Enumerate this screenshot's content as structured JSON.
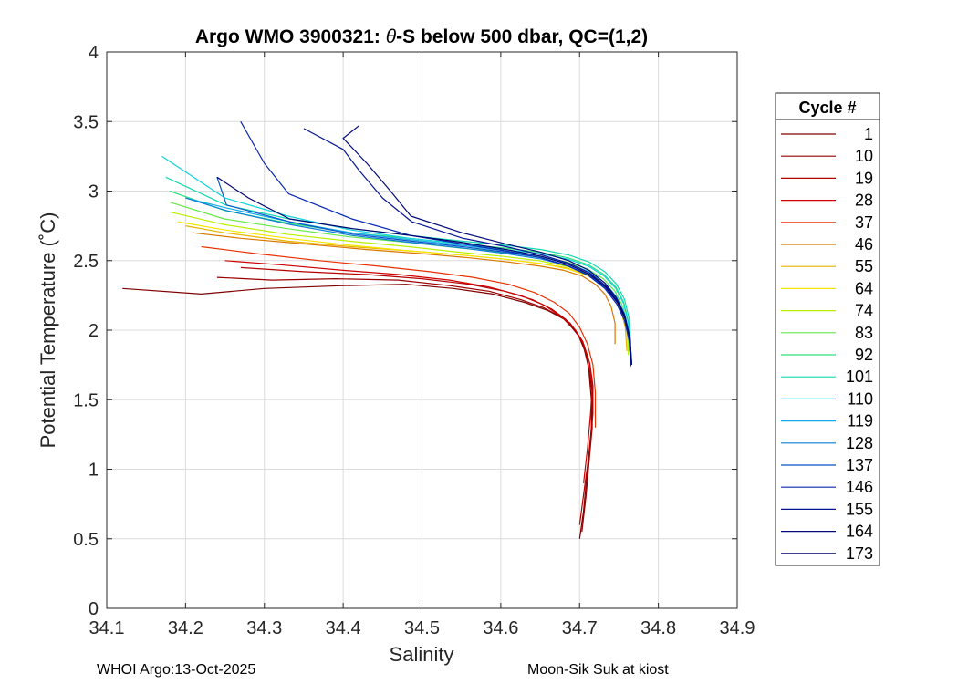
{
  "chart_data": {
    "type": "line",
    "title_prefix": "Argo WMO 3900321: ",
    "title_symbol": "θ",
    "title_suffix": "-S below 500 dbar,  QC=(1,2)",
    "xlabel": "Salinity",
    "ylabel": "Potential Temperature (˚C)",
    "xlim": [
      34.1,
      34.9
    ],
    "ylim": [
      0,
      4
    ],
    "xticks": [
      34.1,
      34.2,
      34.3,
      34.4,
      34.5,
      34.6,
      34.7,
      34.8,
      34.9
    ],
    "xtick_labels": [
      "34.1",
      "34.2",
      "34.3",
      "34.4",
      "34.5",
      "34.6",
      "34.7",
      "34.8",
      "34.9"
    ],
    "yticks": [
      0,
      0.5,
      1,
      1.5,
      2,
      2.5,
      3,
      3.5,
      4
    ],
    "ytick_labels": [
      "0",
      "0.5",
      "1",
      "1.5",
      "2",
      "2.5",
      "3",
      "3.5",
      "4"
    ],
    "grid": true,
    "legend_title": "Cycle #",
    "legend_position": "right",
    "series": [
      {
        "name": "1",
        "color": "#800000",
        "s": [
          34.7,
          34.705,
          34.71,
          34.715,
          34.715,
          34.712,
          34.708,
          34.7,
          34.69,
          34.68,
          34.66,
          34.63,
          34.59,
          34.54,
          34.48,
          34.4,
          34.3,
          34.22,
          34.12
        ],
        "t": [
          0.5,
          0.7,
          1.0,
          1.3,
          1.5,
          1.7,
          1.85,
          1.95,
          2.02,
          2.08,
          2.14,
          2.2,
          2.26,
          2.3,
          2.33,
          2.32,
          2.3,
          2.26,
          2.3
        ]
      },
      {
        "name": "10",
        "color": "#9a0000",
        "s": [
          34.703,
          34.708,
          34.712,
          34.716,
          34.716,
          34.712,
          34.706,
          34.698,
          34.688,
          34.675,
          34.655,
          34.625,
          34.585,
          34.535,
          34.47,
          34.39,
          34.31,
          34.24
        ],
        "t": [
          0.55,
          0.8,
          1.05,
          1.3,
          1.55,
          1.72,
          1.86,
          1.97,
          2.05,
          2.1,
          2.16,
          2.22,
          2.28,
          2.32,
          2.36,
          2.37,
          2.36,
          2.38
        ]
      },
      {
        "name": "19",
        "color": "#b50000",
        "s": [
          34.7,
          34.707,
          34.713,
          34.717,
          34.717,
          34.713,
          34.705,
          34.695,
          34.682,
          34.665,
          34.64,
          34.605,
          34.56,
          34.5,
          34.43,
          34.35,
          34.27
        ],
        "t": [
          0.6,
          0.9,
          1.15,
          1.4,
          1.6,
          1.76,
          1.9,
          2.0,
          2.08,
          2.15,
          2.22,
          2.28,
          2.33,
          2.37,
          2.4,
          2.42,
          2.45
        ]
      },
      {
        "name": "28",
        "color": "#cf0000",
        "s": [
          34.705,
          34.71,
          34.714,
          34.716,
          34.712,
          34.704,
          34.692,
          34.676,
          34.655,
          34.625,
          34.585,
          34.535,
          34.47,
          34.4,
          34.32,
          34.25
        ],
        "t": [
          0.9,
          1.15,
          1.4,
          1.6,
          1.78,
          1.92,
          2.02,
          2.1,
          2.18,
          2.25,
          2.31,
          2.36,
          2.4,
          2.43,
          2.47,
          2.5
        ]
      },
      {
        "name": "37",
        "color": "#e93000",
        "s": [
          34.72,
          34.72,
          34.717,
          34.71,
          34.7,
          34.687,
          34.668,
          34.643,
          34.61,
          34.565,
          34.51,
          34.445,
          34.37,
          34.29,
          34.22
        ],
        "t": [
          1.3,
          1.55,
          1.75,
          1.9,
          2.02,
          2.12,
          2.2,
          2.27,
          2.33,
          2.38,
          2.42,
          2.46,
          2.5,
          2.55,
          2.6
        ]
      },
      {
        "name": "46",
        "color": "#d87800",
        "s": [
          34.745,
          34.745,
          34.74,
          34.732,
          34.72,
          34.703,
          34.68,
          34.65,
          34.61,
          34.56,
          34.5,
          34.43,
          34.35,
          34.27,
          34.21
        ],
        "t": [
          1.9,
          2.05,
          2.17,
          2.26,
          2.33,
          2.39,
          2.43,
          2.46,
          2.49,
          2.52,
          2.55,
          2.58,
          2.62,
          2.66,
          2.7
        ]
      },
      {
        "name": "55",
        "color": "#e8b400",
        "s": [
          34.76,
          34.758,
          34.752,
          34.742,
          34.728,
          34.708,
          34.682,
          34.648,
          34.605,
          34.55,
          34.485,
          34.41,
          34.33,
          34.25,
          34.2
        ],
        "t": [
          1.85,
          2.02,
          2.15,
          2.25,
          2.33,
          2.4,
          2.45,
          2.48,
          2.51,
          2.54,
          2.57,
          2.6,
          2.64,
          2.7,
          2.75
        ]
      },
      {
        "name": "64",
        "color": "#f5e600",
        "s": [
          34.765,
          34.762,
          34.756,
          34.746,
          34.731,
          34.711,
          34.685,
          34.65,
          34.605,
          34.55,
          34.485,
          34.41,
          34.33,
          34.25,
          34.19
        ],
        "t": [
          1.8,
          1.98,
          2.12,
          2.23,
          2.32,
          2.39,
          2.44,
          2.48,
          2.51,
          2.54,
          2.57,
          2.61,
          2.66,
          2.72,
          2.78
        ]
      },
      {
        "name": "74",
        "color": "#b8f000",
        "s": [
          34.762,
          34.76,
          34.754,
          34.744,
          34.729,
          34.709,
          34.683,
          34.648,
          34.603,
          34.548,
          34.483,
          34.408,
          34.328,
          34.248,
          34.18
        ],
        "t": [
          1.82,
          2.0,
          2.14,
          2.25,
          2.34,
          2.41,
          2.46,
          2.5,
          2.53,
          2.56,
          2.6,
          2.64,
          2.69,
          2.76,
          2.85
        ]
      },
      {
        "name": "83",
        "color": "#66e84a",
        "s": [
          34.763,
          34.761,
          34.755,
          34.745,
          34.73,
          34.71,
          34.684,
          34.649,
          34.604,
          34.549,
          34.484,
          34.409,
          34.329,
          34.249,
          34.18
        ],
        "t": [
          1.85,
          2.03,
          2.17,
          2.28,
          2.37,
          2.44,
          2.49,
          2.53,
          2.56,
          2.59,
          2.63,
          2.67,
          2.73,
          2.8,
          2.92
        ]
      },
      {
        "name": "92",
        "color": "#2ee27a",
        "s": [
          34.764,
          34.762,
          34.756,
          34.746,
          34.731,
          34.711,
          34.685,
          34.65,
          34.605,
          34.55,
          34.485,
          34.41,
          34.33,
          34.25,
          34.18
        ],
        "t": [
          1.88,
          2.06,
          2.2,
          2.31,
          2.4,
          2.47,
          2.52,
          2.56,
          2.59,
          2.62,
          2.66,
          2.7,
          2.77,
          2.86,
          3.0
        ]
      },
      {
        "name": "101",
        "color": "#14d9b0",
        "s": [
          34.765,
          34.763,
          34.757,
          34.747,
          34.732,
          34.712,
          34.686,
          34.651,
          34.606,
          34.551,
          34.486,
          34.411,
          34.331,
          34.251,
          34.175
        ],
        "t": [
          1.9,
          2.08,
          2.22,
          2.33,
          2.42,
          2.49,
          2.54,
          2.58,
          2.61,
          2.64,
          2.68,
          2.73,
          2.8,
          2.9,
          3.1
        ]
      },
      {
        "name": "110",
        "color": "#10d2dc",
        "s": [
          34.764,
          34.762,
          34.756,
          34.746,
          34.731,
          34.711,
          34.685,
          34.65,
          34.605,
          34.55,
          34.485,
          34.41,
          34.33,
          34.25,
          34.17
        ],
        "t": [
          1.87,
          2.05,
          2.19,
          2.3,
          2.39,
          2.46,
          2.51,
          2.55,
          2.58,
          2.62,
          2.66,
          2.72,
          2.82,
          2.95,
          3.25
        ]
      },
      {
        "name": "119",
        "color": "#10aee6",
        "s": [
          34.765,
          34.763,
          34.757,
          34.747,
          34.732,
          34.712,
          34.686,
          34.651,
          34.606,
          34.551,
          34.486,
          34.411,
          34.331,
          34.251,
          34.2
        ],
        "t": [
          1.8,
          1.98,
          2.12,
          2.24,
          2.34,
          2.42,
          2.48,
          2.53,
          2.57,
          2.61,
          2.65,
          2.7,
          2.78,
          2.88,
          2.95
        ]
      },
      {
        "name": "128",
        "color": "#0a7ed6",
        "s": [
          34.766,
          34.764,
          34.758,
          34.748,
          34.733,
          34.713,
          34.687,
          34.652,
          34.607,
          34.552,
          34.487,
          34.412,
          34.332,
          34.252,
          34.2
        ],
        "t": [
          1.77,
          1.95,
          2.09,
          2.21,
          2.31,
          2.39,
          2.46,
          2.51,
          2.55,
          2.59,
          2.63,
          2.68,
          2.76,
          2.86,
          2.95
        ]
      },
      {
        "name": "137",
        "color": "#0a52c8",
        "s": [
          34.766,
          34.764,
          34.758,
          34.748,
          34.733,
          34.713,
          34.687,
          34.652,
          34.607,
          34.552,
          34.487,
          34.412,
          34.332,
          34.252,
          34.24
        ],
        "t": [
          1.75,
          1.93,
          2.08,
          2.2,
          2.3,
          2.39,
          2.46,
          2.52,
          2.56,
          2.6,
          2.64,
          2.69,
          2.78,
          2.9,
          3.1
        ]
      },
      {
        "name": "146",
        "color": "#0828b4",
        "s": [
          34.765,
          34.763,
          34.757,
          34.747,
          34.732,
          34.712,
          34.686,
          34.651,
          34.606,
          34.551,
          34.486,
          34.411,
          34.331,
          34.3,
          34.27
        ],
        "t": [
          1.74,
          1.92,
          2.07,
          2.19,
          2.3,
          2.39,
          2.46,
          2.52,
          2.57,
          2.62,
          2.68,
          2.8,
          2.98,
          3.2,
          3.5
        ]
      },
      {
        "name": "155",
        "color": "#061496",
        "s": [
          34.766,
          34.764,
          34.758,
          34.748,
          34.733,
          34.713,
          34.687,
          34.652,
          34.607,
          34.552,
          34.487,
          34.45,
          34.42,
          34.4,
          34.35
        ],
        "t": [
          1.76,
          1.94,
          2.09,
          2.21,
          2.32,
          2.41,
          2.48,
          2.54,
          2.6,
          2.66,
          2.78,
          2.95,
          3.15,
          3.3,
          3.45
        ]
      },
      {
        "name": "164",
        "color": "#040a78",
        "s": [
          34.765,
          34.763,
          34.757,
          34.747,
          34.732,
          34.712,
          34.686,
          34.651,
          34.606,
          34.551,
          34.486,
          34.46,
          34.43,
          34.4,
          34.42
        ],
        "t": [
          1.78,
          1.96,
          2.11,
          2.23,
          2.34,
          2.43,
          2.5,
          2.56,
          2.62,
          2.7,
          2.82,
          3.0,
          3.2,
          3.38,
          3.47
        ]
      },
      {
        "name": "173",
        "color": "#00006e",
        "s": [
          34.766,
          34.764,
          34.758,
          34.748,
          34.733,
          34.713,
          34.687,
          34.652,
          34.607,
          34.552,
          34.487,
          34.412,
          34.332,
          34.28,
          34.24
        ],
        "t": [
          1.75,
          1.93,
          2.08,
          2.2,
          2.31,
          2.4,
          2.47,
          2.53,
          2.58,
          2.63,
          2.68,
          2.73,
          2.8,
          2.95,
          3.1
        ]
      }
    ]
  },
  "footer": {
    "left": "WHOI Argo:13-Oct-2025",
    "right": "Moon-Sik Suk at kiost"
  }
}
